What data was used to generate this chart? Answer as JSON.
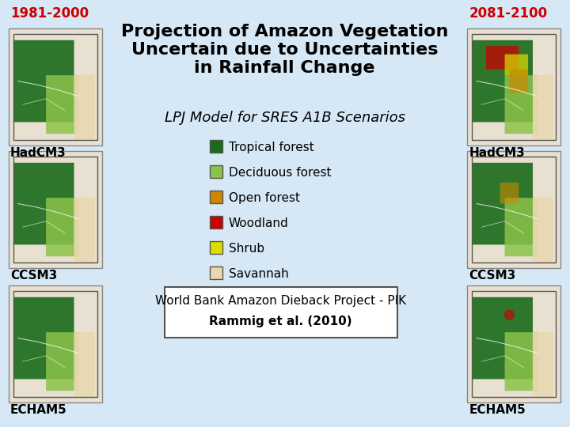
{
  "title": "Projection of Amazon Vegetation\nUncertain due to Uncertainties\nin Rainfall Change",
  "subtitle": "LPJ Model for SRES A1B Scenarios",
  "left_label": "1981-2000",
  "right_label": "2081-2100",
  "left_label_color": "#cc0000",
  "right_label_color": "#cc0000",
  "bg_color": "#d6e8f5",
  "map_bg": "#ffffff",
  "model_labels": [
    "HadCM3",
    "CCSM3",
    "ECHAM5"
  ],
  "legend_items": [
    {
      "label": "Tropical forest",
      "color": "#1a6b1a"
    },
    {
      "label": "Deciduous forest",
      "color": "#8bc34a"
    },
    {
      "label": "Open forest",
      "color": "#cc8800"
    },
    {
      "label": "Woodland",
      "color": "#cc0000"
    },
    {
      "label": "Shrub",
      "color": "#dddd00"
    },
    {
      "label": "Savannah",
      "color": "#e8d8b0"
    }
  ],
  "citation_line1": "World Bank Amazon Dieback Project - PIK",
  "citation_line2": "Rammig et al. (2010)",
  "title_fontsize": 16,
  "subtitle_fontsize": 13,
  "label_fontsize": 11,
  "model_fontsize": 11,
  "citation_fontsize": 11
}
